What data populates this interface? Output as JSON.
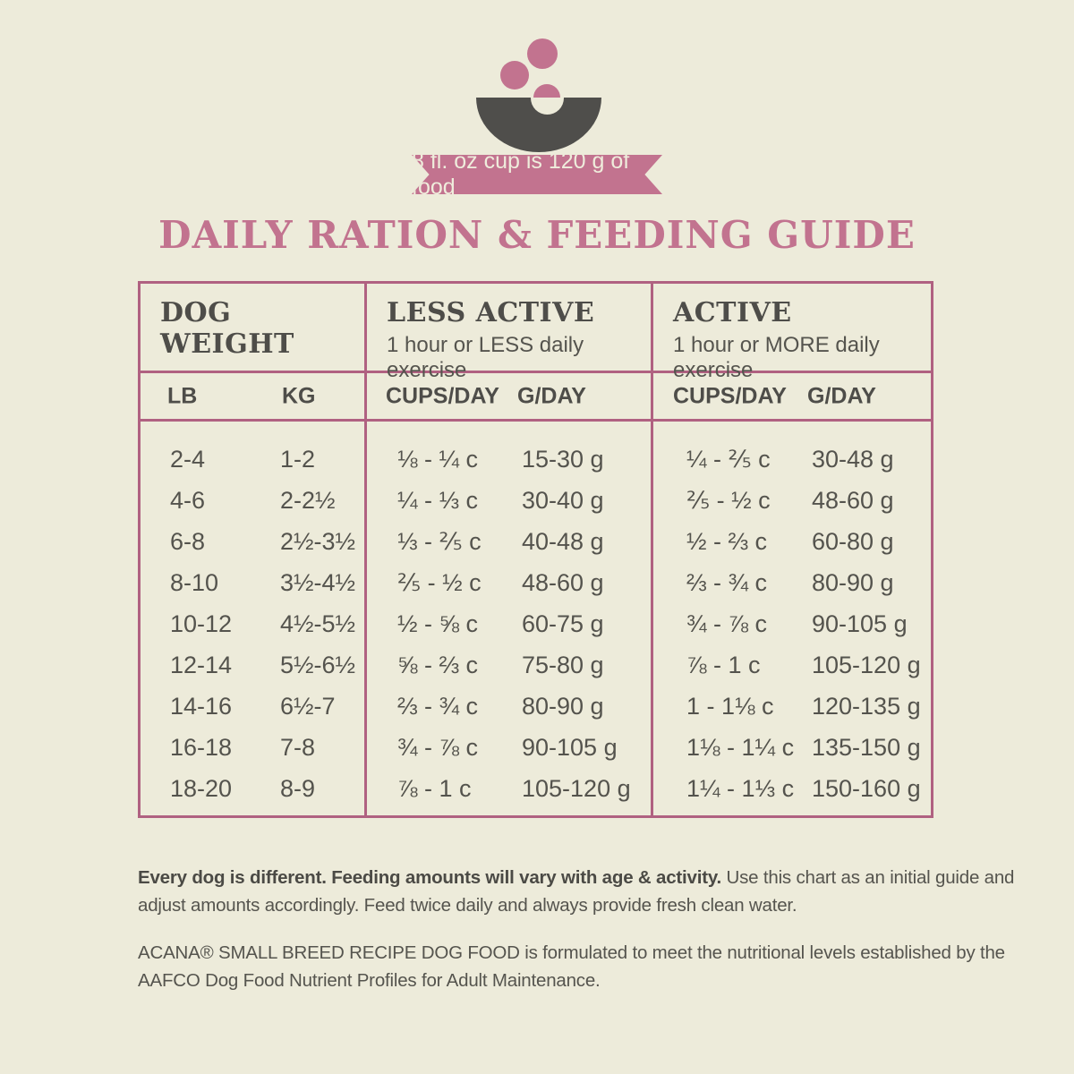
{
  "banner": {
    "ribbon_text": "8 fl. oz cup is 120 g of food"
  },
  "title": "DAILY RATION & FEEDING GUIDE",
  "colors": {
    "background": "#EDEBDA",
    "pink": "#C2738F",
    "table_border": "#B06181",
    "dark_gray": "#4F4E4B",
    "text_gray": "#55544E"
  },
  "chart_data": {
    "type": "table",
    "title": "DAILY RATION & FEEDING GUIDE",
    "note": "8 fl. oz cup is 120 g of food",
    "column_groups": [
      {
        "label_line1": "DOG",
        "label_line2": "WEIGHT",
        "col1": "LB",
        "col2": "KG"
      },
      {
        "label": "LESS ACTIVE",
        "sublabel": "1 hour or LESS daily exercise",
        "col1": "CUPS/DAY",
        "col2": "G/DAY"
      },
      {
        "label": "ACTIVE",
        "sublabel": "1 hour or MORE daily exercise",
        "col1": "CUPS/DAY",
        "col2": "G/DAY"
      }
    ],
    "rows": [
      {
        "lb": "2-4",
        "kg": "1-2",
        "la_cups": "⅛ - ¼ c",
        "la_g": "15-30 g",
        "a_cups": "¼ - ⅖ c",
        "a_g": "30-48 g"
      },
      {
        "lb": "4-6",
        "kg": "2-2½",
        "la_cups": "¼ - ⅓ c",
        "la_g": "30-40 g",
        "a_cups": "⅖ - ½ c",
        "a_g": "48-60 g"
      },
      {
        "lb": "6-8",
        "kg": "2½-3½",
        "la_cups": "⅓ - ⅖ c",
        "la_g": "40-48 g",
        "a_cups": "½ - ⅔ c",
        "a_g": "60-80 g"
      },
      {
        "lb": "8-10",
        "kg": "3½-4½",
        "la_cups": "⅖ - ½ c",
        "la_g": "48-60 g",
        "a_cups": "⅔ - ¾ c",
        "a_g": "80-90 g"
      },
      {
        "lb": "10-12",
        "kg": "4½-5½",
        "la_cups": "½ - ⅝ c",
        "la_g": "60-75 g",
        "a_cups": "¾ - ⅞ c",
        "a_g": "90-105 g"
      },
      {
        "lb": "12-14",
        "kg": "5½-6½",
        "la_cups": "⅝ - ⅔ c",
        "la_g": "75-80 g",
        "a_cups": "⅞ - 1 c",
        "a_g": "105-120 g"
      },
      {
        "lb": "14-16",
        "kg": "6½-7",
        "la_cups": "⅔ - ¾ c",
        "la_g": "80-90 g",
        "a_cups": "1 - 1⅛ c",
        "a_g": "120-135 g"
      },
      {
        "lb": "16-18",
        "kg": "7-8",
        "la_cups": "¾ - ⅞ c",
        "la_g": "90-105 g",
        "a_cups": "1⅛ - 1¼ c",
        "a_g": "135-150 g"
      },
      {
        "lb": "18-20",
        "kg": "8-9",
        "la_cups": "⅞ - 1 c",
        "la_g": "105-120 g",
        "a_cups": "1¼ - 1⅓ c",
        "a_g": "150-160 g"
      }
    ]
  },
  "footnotes": {
    "note1_bold": "Every dog is different. Feeding amounts will vary with age & activity.",
    "note1_rest": " Use this chart as an initial guide and adjust amounts accordingly. Feed twice daily and always provide fresh clean water.",
    "note2": "ACANA® SMALL BREED RECIPE DOG FOOD is formulated to meet the nutritional levels established by the AAFCO Dog Food Nutrient Profiles for Adult Maintenance."
  }
}
